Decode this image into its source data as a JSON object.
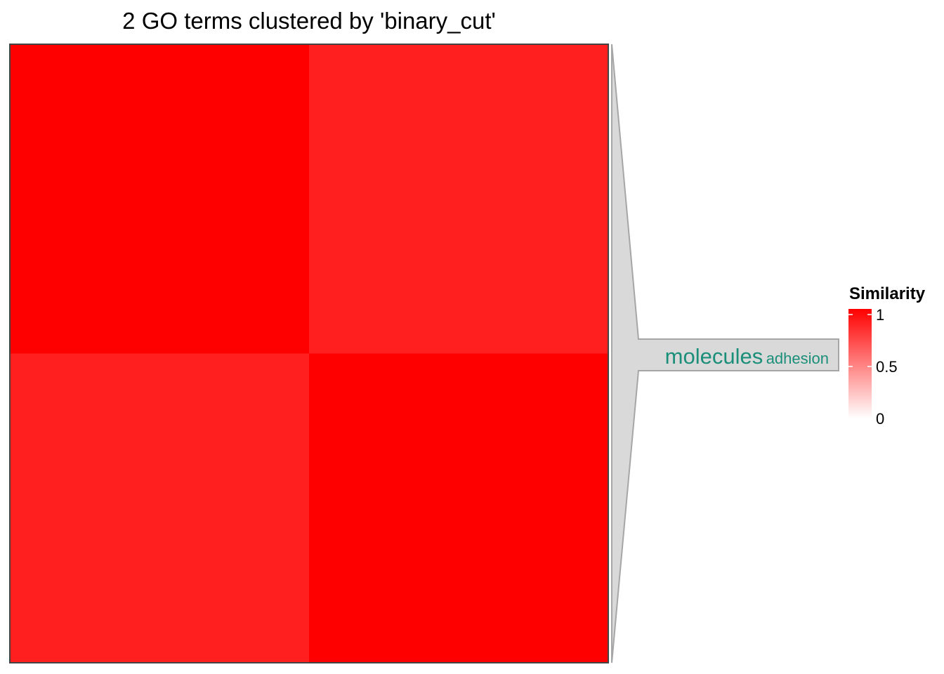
{
  "chart_data": {
    "type": "heatmap",
    "title": "2 GO terms clustered by 'binary_cut'",
    "rows": 2,
    "cols": 2,
    "values": [
      [
        1,
        0.88
      ],
      [
        0.88,
        1
      ]
    ],
    "color_scale": {
      "low": "#ffffff",
      "high": "#ff0000",
      "min": 0,
      "max": 1
    },
    "legend": {
      "title": "Similarity",
      "ticks": [
        {
          "value": 1,
          "label": "1"
        },
        {
          "value": 0.5,
          "label": "0.5"
        },
        {
          "value": 0,
          "label": "0"
        }
      ]
    },
    "cluster_label": {
      "words": [
        {
          "text": "molecules",
          "size": "large"
        },
        {
          "text": "adhesion",
          "size": "small"
        }
      ],
      "color": "#1b8f7a",
      "box_fill": "#d9d9d9"
    }
  }
}
